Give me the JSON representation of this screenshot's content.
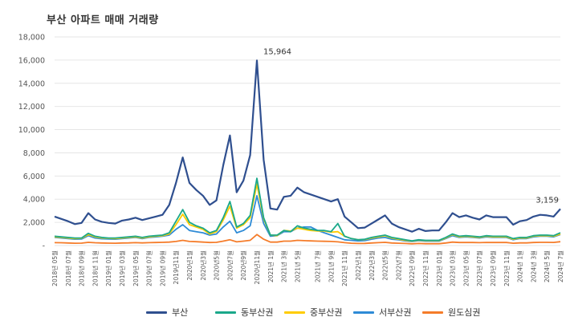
{
  "chart_data": {
    "type": "line",
    "title": "부산 아파트 매매 거래량",
    "ylim": [
      0,
      18000
    ],
    "yticks": [
      "-",
      "2,000",
      "4,000",
      "6,000",
      "8,000",
      "10,000",
      "12,000",
      "14,000",
      "16,000",
      "18,000"
    ],
    "x_tick_labels": [
      "2018년 05월",
      "2018년 07월",
      "2018년 09월",
      "2018년 11월",
      "2019년 01월",
      "2019년 03월",
      "2019년 05월",
      "2019년 07월",
      "2019년 09월",
      "2019년11월",
      "2020년1월",
      "2020년3월",
      "2020년5월",
      "2020년7월",
      "2020년9월",
      "2020년11월",
      "2021년 1월",
      "2021년 3월",
      "2021년 5월",
      "2021년 7월",
      "2021년 9월",
      "2021년 11월",
      "2022년1월",
      "2022년3월",
      "2022년5월",
      "2022년7월",
      "2022년 09월",
      "2022년 11월",
      "2023년 01월",
      "2023년 03월",
      "2023년 05월",
      "2023년 07월",
      "2023년 09월",
      "2023년 11월",
      "2024년 1월",
      "2024년 3월",
      "2024년 5월",
      "2024년 7월"
    ],
    "series": [
      {
        "name": "부산",
        "color": "#2f4f8f",
        "values": [
          2500,
          2300,
          2100,
          1850,
          1950,
          2800,
          2250,
          2050,
          1950,
          1900,
          2150,
          2250,
          2400,
          2200,
          2350,
          2500,
          2650,
          3500,
          5400,
          7600,
          5400,
          4800,
          4300,
          3500,
          3900,
          6900,
          9500,
          4600,
          5600,
          7800,
          15964,
          7400,
          3200,
          3100,
          4200,
          4300,
          5000,
          4600,
          4400,
          4200,
          4000,
          3800,
          4000,
          2500,
          2000,
          1500,
          1550,
          1900,
          2250,
          2600,
          1900,
          1600,
          1400,
          1200,
          1450,
          1250,
          1300,
          1300,
          2000,
          2800,
          2450,
          2600,
          2400,
          2250,
          2600,
          2450,
          2450,
          2450,
          1800,
          2100,
          2200,
          2500,
          2650,
          2600,
          2500,
          3159
        ]
      },
      {
        "name": "동부산권",
        "color": "#1aa88a",
        "values": [
          800,
          750,
          700,
          650,
          650,
          1050,
          800,
          700,
          650,
          650,
          700,
          750,
          800,
          700,
          800,
          850,
          900,
          1100,
          2100,
          3100,
          2000,
          1700,
          1500,
          1100,
          1300,
          2400,
          3800,
          1600,
          1900,
          2600,
          5800,
          2400,
          900,
          900,
          1300,
          1200,
          1700,
          1500,
          1400,
          1300,
          1300,
          1200,
          1900,
          800,
          600,
          500,
          550,
          700,
          800,
          900,
          700,
          600,
          500,
          400,
          500,
          450,
          450,
          450,
          700,
          1000,
          800,
          850,
          800,
          750,
          850,
          800,
          800,
          800,
          600,
          700,
          700,
          850,
          900,
          900,
          850,
          1100
        ]
      },
      {
        "name": "중부산권",
        "color": "#ffcc00",
        "values": [
          750,
          700,
          650,
          600,
          620,
          950,
          750,
          650,
          620,
          600,
          650,
          700,
          750,
          650,
          750,
          800,
          850,
          1000,
          1800,
          2700,
          1800,
          1600,
          1400,
          1000,
          1200,
          2200,
          3400,
          1500,
          1800,
          2400,
          5300,
          2300,
          900,
          850,
          1300,
          1250,
          1500,
          1400,
          1300,
          1250,
          1250,
          1150,
          1200,
          800,
          600,
          500,
          520,
          650,
          750,
          850,
          650,
          550,
          450,
          380,
          470,
          420,
          420,
          420,
          650,
          950,
          750,
          800,
          750,
          700,
          800,
          750,
          750,
          750,
          550,
          650,
          650,
          800,
          850,
          850,
          800,
          1000
        ]
      },
      {
        "name": "서부산권",
        "color": "#2e8bd6",
        "values": [
          700,
          650,
          600,
          550,
          560,
          850,
          650,
          580,
          560,
          550,
          600,
          650,
          700,
          600,
          700,
          750,
          800,
          900,
          1400,
          1800,
          1300,
          1200,
          1100,
          900,
          1000,
          1600,
          2100,
          1100,
          1300,
          1700,
          4300,
          1900,
          800,
          850,
          1200,
          1200,
          1500,
          1600,
          1600,
          1300,
          1100,
          900,
          700,
          500,
          450,
          400,
          420,
          550,
          650,
          700,
          550,
          500,
          400,
          350,
          420,
          380,
          380,
          380,
          600,
          850,
          700,
          750,
          700,
          650,
          750,
          700,
          700,
          700,
          500,
          600,
          600,
          750,
          800,
          800,
          750,
          950
        ]
      },
      {
        "name": "원도심권",
        "color": "#f57c2a",
        "values": [
          250,
          240,
          220,
          200,
          210,
          280,
          240,
          220,
          210,
          200,
          220,
          230,
          250,
          230,
          250,
          260,
          280,
          300,
          350,
          450,
          350,
          330,
          300,
          260,
          280,
          380,
          500,
          320,
          380,
          450,
          950,
          550,
          300,
          300,
          380,
          380,
          450,
          420,
          400,
          380,
          370,
          350,
          320,
          250,
          200,
          180,
          190,
          220,
          250,
          280,
          220,
          200,
          180,
          150,
          180,
          160,
          160,
          160,
          220,
          300,
          260,
          270,
          260,
          250,
          270,
          260,
          260,
          260,
          200,
          230,
          230,
          260,
          280,
          280,
          270,
          330
        ]
      }
    ],
    "annotations": [
      {
        "text": "15,964",
        "series": "부산",
        "index": 30
      },
      {
        "text": "3,159",
        "series": "부산",
        "index": 75
      }
    ]
  }
}
